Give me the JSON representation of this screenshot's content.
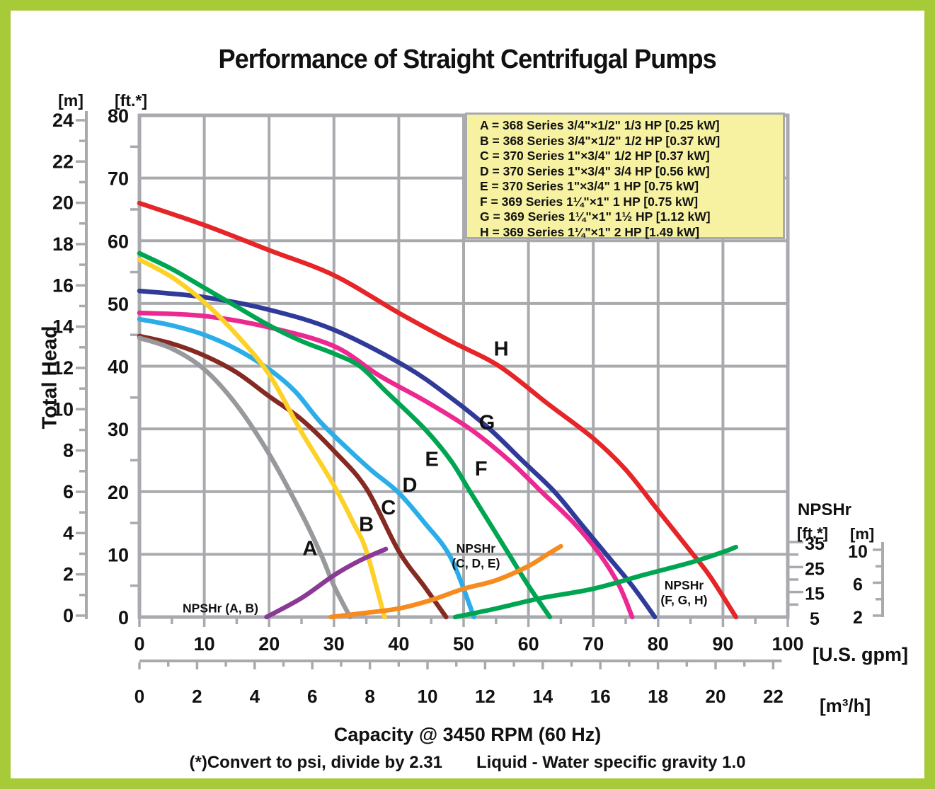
{
  "title": "Performance of Straight Centrifugal Pumps",
  "frame_color": "#a7cb38",
  "header_labels": {
    "meters": "[m]",
    "feet": "[ft.*]",
    "y_axis_title": "Total Head"
  },
  "npshr_block": {
    "title": "NPSHr",
    "feet": "[ft.*]",
    "meters": "[m]"
  },
  "units": {
    "gpm": "[U.S. gpm]",
    "m3h": "[m³/h]"
  },
  "legend": {
    "lines": [
      "A = 368 Series 3/4\"×1/2\" 1/3 HP [0.25 kW]",
      "B = 368 Series 3/4\"×1/2\" 1/2 HP [0.37 kW]",
      "C = 370 Series 1\"×3/4\" 1/2 HP [0.37 kW]",
      "D = 370 Series 1\"×3/4\" 3/4 HP [0.56 kW]",
      "E = 370 Series 1\"×3/4\" 1 HP [0.75 kW]",
      "F = 369 Series 1¼\"×1\" 1 HP [0.75 kW]",
      "G = 369 Series 1¼\"×1\" 1½ HP [1.12 kW]",
      "H = 369 Series 1¼\"×1\" 2 HP [1.49 kW]"
    ]
  },
  "footer": {
    "capacity_label": "Capacity @ 3450 RPM (60 Hz)",
    "note_left": "(*)Convert to psi, divide by 2.31",
    "note_right": "Liquid - Water specific gravity 1.0"
  },
  "chart_data": {
    "type": "line",
    "title": "Performance of Straight Centrifugal Pumps",
    "xlabel": "Capacity @ 3450 RPM (60 Hz)",
    "ylabel": "Total Head",
    "grid": true,
    "grid_color": "#a8aaad",
    "axes": {
      "ft_ticks": [
        0,
        10,
        20,
        30,
        40,
        50,
        60,
        70,
        80
      ],
      "m_ticks": [
        0,
        2,
        4,
        6,
        8,
        10,
        12,
        14,
        16,
        18,
        20,
        22,
        24
      ],
      "gpm_ticks": [
        0,
        10,
        20,
        30,
        40,
        50,
        60,
        70,
        80,
        90,
        100
      ],
      "m3h_ticks": [
        0,
        2,
        4,
        6,
        8,
        10,
        12,
        14,
        16,
        18,
        20,
        22
      ],
      "npshr_ft_ticks": [
        35,
        25,
        15,
        5
      ],
      "npshr_m_ticks": [
        10,
        6,
        2
      ],
      "gpm_range": [
        0,
        100
      ],
      "ft_range": [
        0,
        80
      ],
      "npshr_ft_range": [
        5,
        35
      ]
    },
    "layout": {
      "px0": 197,
      "pxs": 9.16,
      "py0": 872,
      "pys": 8.8625,
      "ptop": 163,
      "pright": 1113,
      "pyn": 3.533,
      "nmin": 5,
      "pm0": 870,
      "pms": 29.17,
      "pxh": 40.7,
      "nax_x": 1247,
      "nax_m0": 870,
      "nax_pms": 11.63
    },
    "series": [
      {
        "name": "H",
        "color": "#e52528",
        "label_at": [
          55.8,
          42.7
        ],
        "points": [
          [
            0,
            66
          ],
          [
            10,
            62.5
          ],
          [
            20,
            58.5
          ],
          [
            30,
            54.5
          ],
          [
            40,
            48.5
          ],
          [
            48,
            44
          ],
          [
            55.5,
            40
          ],
          [
            63,
            34
          ],
          [
            70,
            28.5
          ],
          [
            75,
            23.5
          ],
          [
            80,
            17
          ],
          [
            85,
            10.5
          ],
          [
            88,
            6.5
          ],
          [
            92,
            0
          ]
        ]
      },
      {
        "name": "G",
        "color": "#2f3a99",
        "label_at": [
          53.6,
          31.0
        ],
        "points": [
          [
            0,
            52
          ],
          [
            10,
            51
          ],
          [
            20,
            49
          ],
          [
            30,
            45.8
          ],
          [
            41,
            40
          ],
          [
            48,
            35
          ],
          [
            54,
            30
          ],
          [
            59,
            25
          ],
          [
            64,
            20
          ],
          [
            68,
            15
          ],
          [
            72,
            10
          ],
          [
            76,
            5
          ],
          [
            79.5,
            0
          ]
        ]
      },
      {
        "name": "F",
        "color": "#ec2891",
        "label_at": [
          52.7,
          23.6
        ],
        "points": [
          [
            0,
            48.5
          ],
          [
            10,
            48
          ],
          [
            20,
            46.2
          ],
          [
            30,
            43.2
          ],
          [
            37,
            38.5
          ],
          [
            44,
            34.5
          ],
          [
            51,
            30
          ],
          [
            57,
            25
          ],
          [
            62,
            20
          ],
          [
            67,
            15
          ],
          [
            71,
            10
          ],
          [
            74,
            5
          ],
          [
            76,
            0
          ]
        ]
      },
      {
        "name": "E",
        "color": "#00a551",
        "label_at": [
          45.1,
          25.1
        ],
        "points": [
          [
            0,
            58
          ],
          [
            5,
            55.5
          ],
          [
            10,
            52.5
          ],
          [
            15,
            49.5
          ],
          [
            20,
            46.5
          ],
          [
            25,
            44
          ],
          [
            30,
            42
          ],
          [
            34,
            40
          ],
          [
            38,
            36
          ],
          [
            44,
            30
          ],
          [
            48,
            25
          ],
          [
            51,
            20
          ],
          [
            54,
            15
          ],
          [
            57,
            10
          ],
          [
            60,
            5
          ],
          [
            63.3,
            0
          ]
        ]
      },
      {
        "name": "D",
        "color": "#2aade8",
        "label_at": [
          41.7,
          21.0
        ],
        "points": [
          [
            0,
            47.5
          ],
          [
            5,
            46.5
          ],
          [
            10,
            45
          ],
          [
            15,
            42.7
          ],
          [
            20,
            39.5
          ],
          [
            24,
            36
          ],
          [
            28,
            31
          ],
          [
            33,
            26
          ],
          [
            36,
            23.2
          ],
          [
            40,
            19.8
          ],
          [
            44,
            15
          ],
          [
            48,
            9.5
          ],
          [
            51.6,
            0
          ]
        ]
      },
      {
        "name": "C",
        "color": "#852a22",
        "label_at": [
          38.4,
          17.4
        ],
        "points": [
          [
            0,
            44.8
          ],
          [
            5,
            43.6
          ],
          [
            10,
            41.7
          ],
          [
            15,
            39
          ],
          [
            20,
            35.2
          ],
          [
            25,
            31.5
          ],
          [
            30,
            26.5
          ],
          [
            35,
            20.5
          ],
          [
            40,
            10.5
          ],
          [
            44,
            4.8
          ],
          [
            47.3,
            0
          ]
        ]
      },
      {
        "name": "B",
        "color": "#fdd127",
        "label_at": [
          35.0,
          14.7
        ],
        "points": [
          [
            0,
            57
          ],
          [
            5,
            54.2
          ],
          [
            10,
            50.2
          ],
          [
            15,
            45
          ],
          [
            20,
            38.7
          ],
          [
            25,
            29.5
          ],
          [
            30,
            21
          ],
          [
            33,
            15
          ],
          [
            35,
            10.5
          ],
          [
            37.8,
            0
          ]
        ]
      },
      {
        "name": "A",
        "color": "#97999c",
        "label_at": [
          26.3,
          10.9
        ],
        "points": [
          [
            0,
            44.5
          ],
          [
            5,
            42.8
          ],
          [
            10,
            39.5
          ],
          [
            15,
            33.8
          ],
          [
            20,
            26
          ],
          [
            25,
            16.5
          ],
          [
            28,
            10
          ],
          [
            30,
            5
          ],
          [
            32.5,
            0
          ]
        ]
      }
    ],
    "npshr_series": [
      {
        "name": "NPSHr (A, B)",
        "color": "#8a3a94",
        "label_lines": [
          "NPSHr (A, B)"
        ],
        "label_at": [
          12.5,
          8.5
        ],
        "points": [
          [
            19.6,
            5
          ],
          [
            25,
            12.6
          ],
          [
            30,
            21.7
          ],
          [
            34,
            27.6
          ],
          [
            38,
            32.2
          ]
        ]
      },
      {
        "name": "NPSHr (C, D, E)",
        "color": "#f68b1f",
        "label_lines": [
          "NPSHr",
          "(C, D, E)"
        ],
        "label_at": [
          51.9,
          32.4
        ],
        "points": [
          [
            29.5,
            5
          ],
          [
            35,
            6.7
          ],
          [
            40,
            8.4
          ],
          [
            45,
            11.8
          ],
          [
            50,
            16.3
          ],
          [
            55,
            19.7
          ],
          [
            60,
            25.4
          ],
          [
            63,
            30.2
          ],
          [
            65,
            33.3
          ]
        ]
      },
      {
        "name": "NPSHr (F, G, H)",
        "color": "#00a551",
        "label_lines": [
          "NPSHr",
          "(F, G, H)"
        ],
        "label_at": [
          84.0,
          17.7
        ],
        "points": [
          [
            48.7,
            5
          ],
          [
            55,
            8.4
          ],
          [
            62,
            12.6
          ],
          [
            70,
            16.3
          ],
          [
            78,
            22
          ],
          [
            85,
            26.8
          ],
          [
            90,
            31
          ],
          [
            92,
            33
          ]
        ]
      }
    ]
  }
}
